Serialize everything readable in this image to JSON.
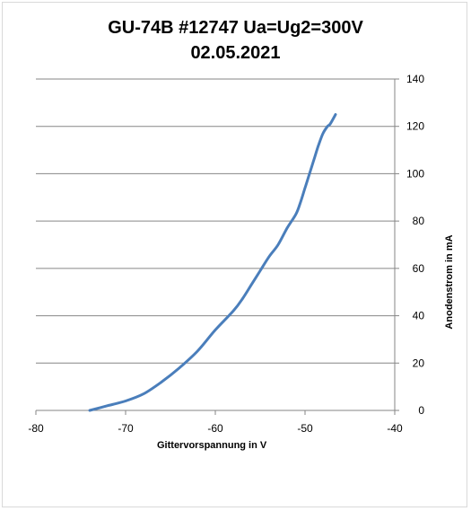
{
  "chart_data": {
    "type": "line",
    "title": "GU-74B #12747 Ua=Ug2=300V\n02.05.2021",
    "xlabel": "Gittervorspannung  in V",
    "ylabel": "Anodenstrom  in mA",
    "xlim": [
      -80,
      -40
    ],
    "ylim": [
      0,
      140
    ],
    "xticks": [
      -80,
      -70,
      -60,
      -50,
      -40
    ],
    "yticks": [
      0,
      20,
      40,
      60,
      80,
      100,
      120,
      140
    ],
    "y_axis_side": "right",
    "grid": "horizontal",
    "legend": "none",
    "series": [
      {
        "color": "#4a7ebb",
        "x": [
          -74,
          -72,
          -70,
          -68,
          -66,
          -64,
          -62,
          -60,
          -58,
          -57,
          -56,
          -55,
          -54,
          -53,
          -52,
          -51,
          -50.5,
          -50,
          -49.5,
          -49,
          -48.5,
          -48,
          -47.5,
          -47.2,
          -46.6
        ],
        "y": [
          0,
          2,
          4,
          7,
          12,
          18,
          25,
          34,
          42,
          47,
          53,
          59,
          65,
          70,
          77,
          83,
          88,
          94,
          100,
          106,
          112,
          117,
          120,
          121,
          125
        ]
      }
    ]
  }
}
